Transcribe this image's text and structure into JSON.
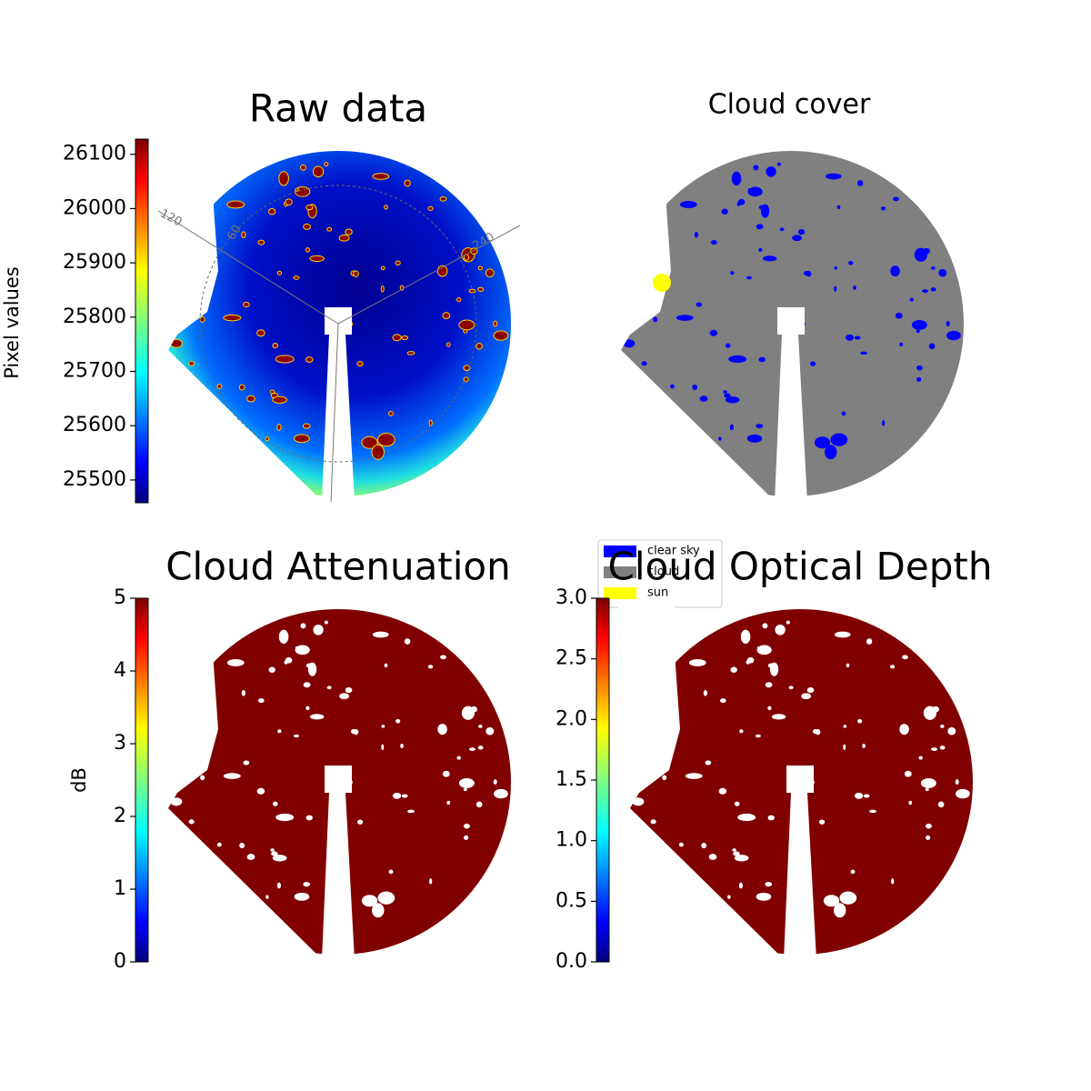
{
  "chart_data": [
    {
      "type": "image",
      "title": "Raw data",
      "colorbar_label": "Pixel values",
      "colormap": "jet",
      "clim": [
        25458,
        26128
      ],
      "cticks": [
        25500,
        25600,
        25700,
        25800,
        25900,
        26000,
        26100
      ],
      "angle_labels": [
        120,
        60,
        240
      ]
    },
    {
      "type": "image",
      "title": "Cloud cover",
      "series": [
        {
          "name": "clear sky",
          "color": "#0000ff"
        },
        {
          "name": "cloud",
          "color": "#808080"
        },
        {
          "name": "sun",
          "color": "#ffff00"
        }
      ]
    },
    {
      "type": "image",
      "title": "Cloud Attenuation",
      "colorbar_label": "dB",
      "colormap": "jet",
      "clim": [
        0,
        5
      ],
      "cticks": [
        0,
        1,
        2,
        3,
        4,
        5
      ]
    },
    {
      "type": "image",
      "title": "Cloud Optical Depth",
      "colormap": "jet",
      "clim": [
        0,
        3
      ],
      "cticks": [
        {
          "value": 0,
          "label": "0.0"
        },
        0.5,
        {
          "value": 1,
          "label": "1.0"
        },
        1.5,
        {
          "value": 2,
          "label": "2.0"
        },
        2.5,
        {
          "value": 3,
          "label": "3.0"
        }
      ]
    }
  ]
}
